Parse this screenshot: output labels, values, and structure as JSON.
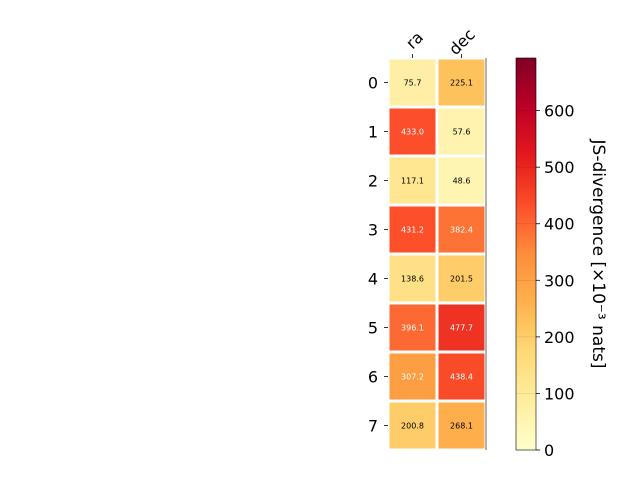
{
  "chart_data": {
    "type": "heatmap",
    "columns": [
      "ra",
      "dec"
    ],
    "rows": [
      "0",
      "1",
      "2",
      "3",
      "4",
      "5",
      "6",
      "7"
    ],
    "values": [
      [
        75.7,
        225.1
      ],
      [
        433.0,
        57.6
      ],
      [
        117.1,
        48.6
      ],
      [
        431.2,
        382.4
      ],
      [
        138.6,
        201.5
      ],
      [
        396.1,
        477.7
      ],
      [
        307.2,
        438.4
      ],
      [
        200.8,
        268.1
      ]
    ],
    "value_labels": [
      [
        "75.7",
        "225.1"
      ],
      [
        "433.0",
        "57.6"
      ],
      [
        "117.1",
        "48.6"
      ],
      [
        "431.2",
        "382.4"
      ],
      [
        "138.6",
        "201.5"
      ],
      [
        "396.1",
        "477.7"
      ],
      [
        "307.2",
        "438.4"
      ],
      [
        "200.8",
        "268.1"
      ]
    ],
    "colorbar": {
      "label": "JS-divergence [×10⁻³ nats]",
      "range": [
        0,
        693
      ],
      "ticks": [
        0,
        100,
        200,
        300,
        400,
        500,
        600
      ],
      "colormap": "YlOrRd"
    }
  }
}
